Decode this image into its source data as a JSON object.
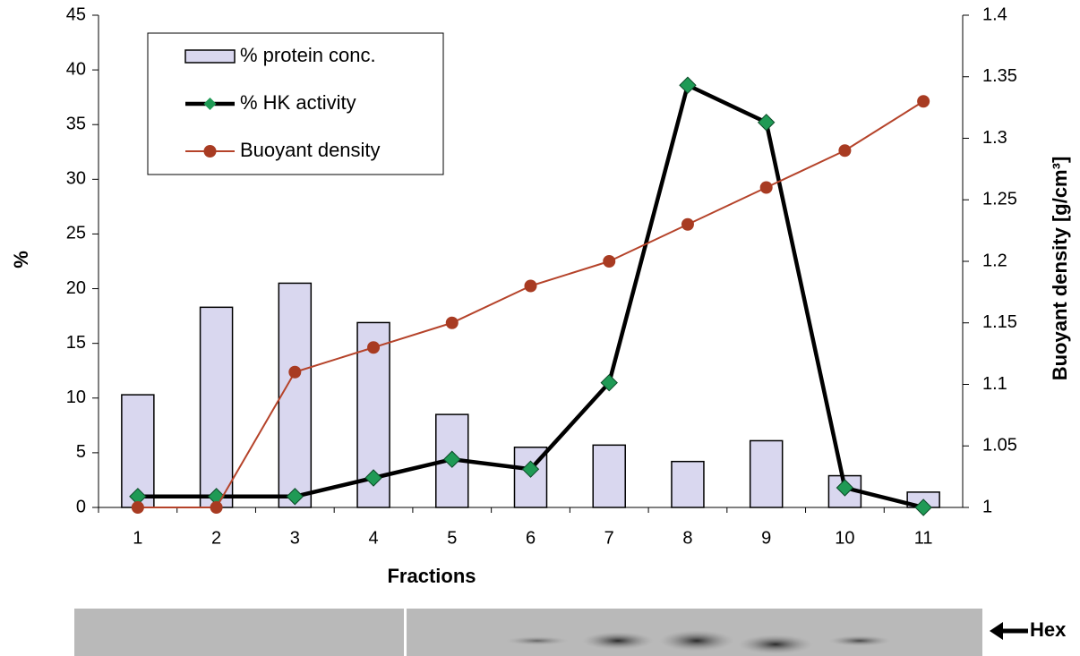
{
  "chart_data": {
    "type": "combo",
    "x_label": "Fractions",
    "y_label": "%",
    "y2_label": "Buoyant density [g/cm³]",
    "categories": [
      "1",
      "2",
      "3",
      "4",
      "5",
      "6",
      "7",
      "8",
      "9",
      "10",
      "11"
    ],
    "series": [
      {
        "name": "% protein conc.",
        "type": "bar",
        "color": "#d9d7ef",
        "values": [
          10.3,
          18.3,
          20.5,
          16.9,
          8.5,
          5.5,
          5.7,
          4.2,
          6.1,
          2.9,
          1.4
        ]
      },
      {
        "name": "% HK activity",
        "type": "line",
        "marker": "diamond",
        "color": "#000000",
        "marker_color": "#1f9a55",
        "values": [
          1.0,
          1.0,
          1.0,
          2.7,
          4.4,
          3.5,
          11.4,
          38.6,
          35.2,
          1.8,
          0
        ]
      },
      {
        "name": "Buoyant density",
        "type": "line",
        "marker": "circle",
        "axis": "y2",
        "color": "#b5432a",
        "marker_color": "#a83b22",
        "values": [
          1,
          1,
          1.11,
          1.13,
          1.15,
          1.18,
          1.2,
          1.23,
          1.26,
          1.29,
          1.33
        ]
      }
    ],
    "ylim": [
      0,
      45
    ],
    "yticks": [
      0,
      5,
      10,
      15,
      20,
      25,
      30,
      35,
      40,
      45
    ],
    "y2lim": [
      1,
      1.4
    ],
    "y2ticks": [
      1,
      1.05,
      1.1,
      1.15,
      1.2,
      1.25,
      1.3,
      1.35,
      1.4
    ],
    "legend": "upper-left",
    "blot_label": "Hex"
  }
}
